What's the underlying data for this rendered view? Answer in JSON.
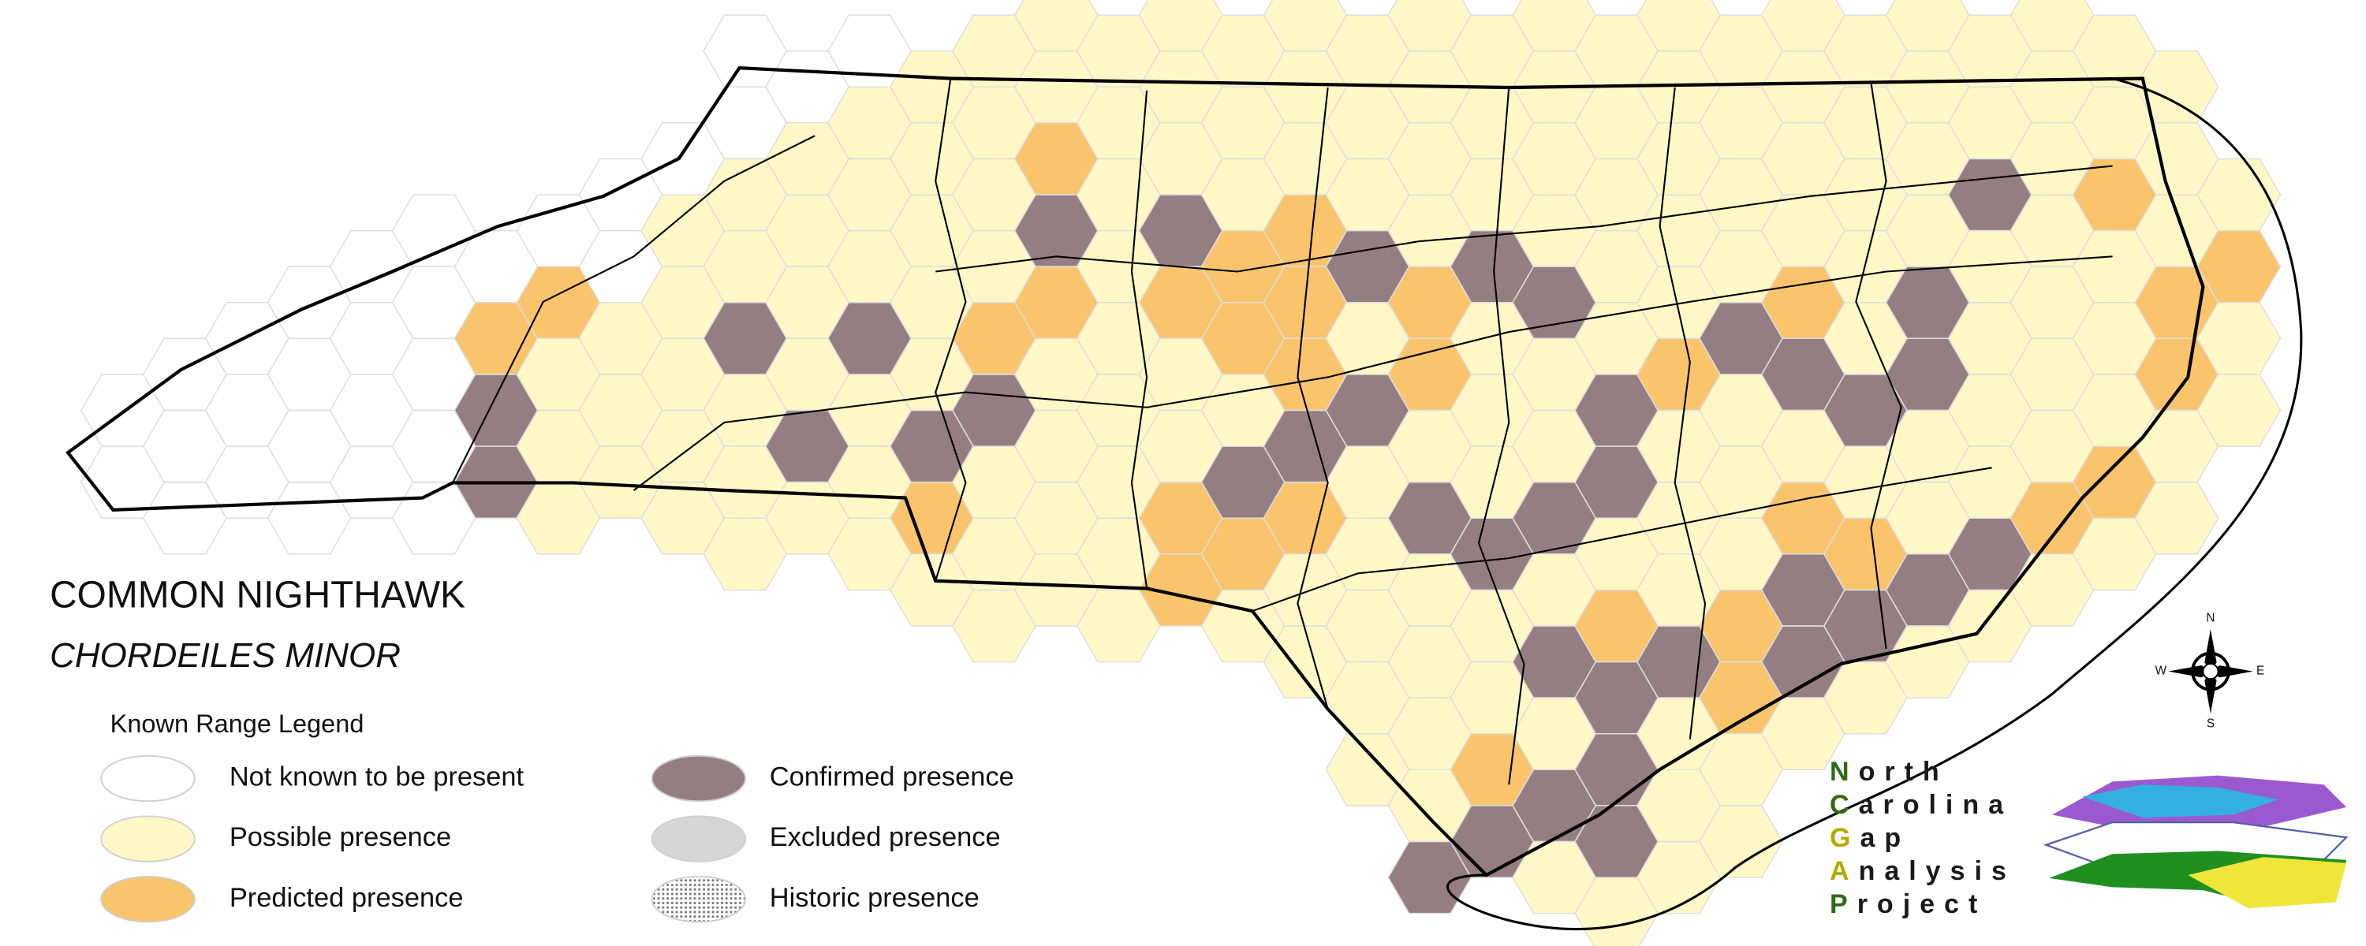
{
  "title": "COMMON NIGHTHAWK",
  "subtitle": "CHORDEILES MINOR",
  "legend": {
    "title": "Known Range Legend",
    "items": [
      "Not known to be present",
      "Possible presence",
      "Predicted presence",
      "Confirmed presence",
      "Excluded presence",
      "Historic presence"
    ]
  },
  "compass": {
    "n": "N",
    "s": "S",
    "e": "E",
    "w": "W"
  },
  "logo": {
    "lines": [
      "North",
      "Carolina",
      "Gap",
      "Analysis",
      "Project"
    ]
  }
}
